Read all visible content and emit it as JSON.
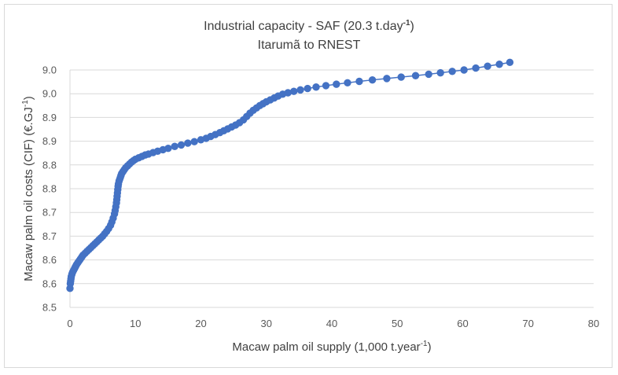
{
  "chart_data": {
    "type": "scatter",
    "title": "Industrial capacity - SAF (20.3 t.day-1)",
    "subtitle": "Itarumã to RNEST",
    "xlabel": "Macaw palm oil supply (1,000 t.year-1)",
    "ylabel": "Macaw palm oil costs (CIF) (€.GJ-1)",
    "xlim": [
      0,
      80
    ],
    "ylim": [
      8.5,
      9.0
    ],
    "x_ticks": [
      0,
      10,
      20,
      30,
      40,
      50,
      60,
      70,
      80
    ],
    "x_tick_labels": [
      "0",
      "10",
      "20",
      "30",
      "40",
      "50",
      "60",
      "70",
      "80"
    ],
    "y_ticks": [
      8.5,
      8.55,
      8.6,
      8.65,
      8.7,
      8.75,
      8.8,
      8.85,
      8.9,
      8.95,
      9.0
    ],
    "y_tick_labels": [
      "8.5",
      "8.6",
      "8.6",
      "8.7",
      "8.7",
      "8.8",
      "8.8",
      "8.9",
      "8.9",
      "9.0",
      "9.0"
    ],
    "grid": "horizontal",
    "legend": "none",
    "marker_color": "#4472c4",
    "series": [
      {
        "x": [
          0.0,
          0.05,
          0.1,
          0.15,
          0.2,
          0.3,
          0.4,
          0.55,
          0.7,
          0.85,
          1.0,
          1.2,
          1.4,
          1.6,
          1.8,
          2.0,
          2.3,
          2.6,
          2.9,
          3.2,
          3.5,
          3.8,
          4.1,
          4.4,
          4.7,
          5.0,
          5.3,
          5.6,
          5.9,
          6.2,
          6.4,
          6.6,
          6.8,
          6.9,
          7.0,
          7.1,
          7.15,
          7.2,
          7.25,
          7.3,
          7.35,
          7.4,
          7.5,
          7.6,
          7.7,
          7.8,
          7.9,
          8.1,
          8.3,
          8.5,
          8.8,
          9.1,
          9.4,
          9.7,
          10.0,
          10.5,
          11.0,
          11.5,
          12.0,
          12.7,
          13.4,
          14.2,
          15.0,
          16.0,
          17.0,
          18.0,
          19.0,
          20.0,
          20.8,
          21.5,
          22.2,
          22.9,
          23.5,
          24.1,
          24.7,
          25.3,
          25.9,
          26.5,
          27.0,
          27.5,
          28.0,
          28.5,
          29.0,
          29.5,
          30.0,
          30.6,
          31.2,
          31.8,
          32.5,
          33.3,
          34.2,
          35.2,
          36.3,
          37.6,
          39.1,
          40.7,
          42.4,
          44.2,
          46.2,
          48.4,
          50.6,
          52.8,
          54.8,
          56.6,
          58.4,
          60.2,
          62.0,
          63.8,
          65.6,
          67.2
        ],
        "y": [
          8.54,
          8.55,
          8.555,
          8.56,
          8.565,
          8.57,
          8.574,
          8.578,
          8.582,
          8.586,
          8.59,
          8.594,
          8.598,
          8.602,
          8.606,
          8.61,
          8.614,
          8.618,
          8.622,
          8.626,
          8.63,
          8.634,
          8.638,
          8.642,
          8.646,
          8.65,
          8.655,
          8.66,
          8.666,
          8.673,
          8.68,
          8.688,
          8.697,
          8.704,
          8.712,
          8.72,
          8.727,
          8.734,
          8.741,
          8.748,
          8.755,
          8.76,
          8.766,
          8.77,
          8.774,
          8.778,
          8.782,
          8.786,
          8.79,
          8.794,
          8.798,
          8.802,
          8.806,
          8.809,
          8.812,
          8.815,
          8.818,
          8.821,
          8.823,
          8.826,
          8.829,
          8.832,
          8.835,
          8.839,
          8.842,
          8.846,
          8.849,
          8.853,
          8.856,
          8.86,
          8.864,
          8.868,
          8.872,
          8.876,
          8.88,
          8.884,
          8.889,
          8.895,
          8.902,
          8.909,
          8.915,
          8.92,
          8.925,
          8.929,
          8.933,
          8.937,
          8.941,
          8.945,
          8.949,
          8.952,
          8.955,
          8.958,
          8.961,
          8.964,
          8.967,
          8.97,
          8.973,
          8.976,
          8.979,
          8.982,
          8.985,
          8.988,
          8.991,
          8.994,
          8.997,
          9.0,
          9.004,
          9.008,
          9.012,
          9.016
        ]
      }
    ]
  }
}
